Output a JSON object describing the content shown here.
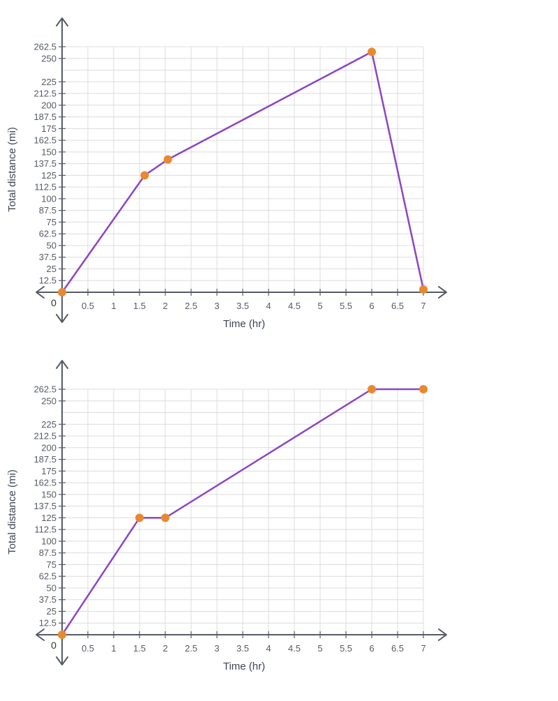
{
  "chart_data": [
    {
      "type": "line",
      "xlabel": "Time (hr)",
      "ylabel": "Total distance (mi)",
      "origin_label": "0",
      "x_ticks": [
        "0.5",
        "1",
        "1.5",
        "2",
        "2.5",
        "3",
        "3.5",
        "4",
        "4.5",
        "5",
        "5.5",
        "6",
        "6.5",
        "7"
      ],
      "y_ticks": [
        "12.5",
        "25",
        "37.5",
        "50",
        "62.5",
        "75",
        "87.5",
        "100",
        "112.5",
        "125",
        "137.5",
        "150",
        "162.5",
        "175",
        "187.5",
        "200",
        "212.5",
        "225",
        "250",
        "262.5"
      ],
      "xlim": [
        0,
        7
      ],
      "ylim": [
        0,
        262.5
      ],
      "grid": true,
      "series": [
        {
          "points": [
            [
              0,
              0
            ],
            [
              1.6,
              125
            ],
            [
              2.05,
              142
            ],
            [
              6,
              257
            ],
            [
              7,
              3
            ]
          ]
        }
      ],
      "colors": {
        "line": "#8b45c4",
        "marker": "#e8892f",
        "axis": "#555a66",
        "grid": "#dcdcdc"
      }
    },
    {
      "type": "line",
      "xlabel": "Time (hr)",
      "ylabel": "Total distance (mi)",
      "origin_label": "0",
      "x_ticks": [
        "0.5",
        "1",
        "1.5",
        "2",
        "2.5",
        "3",
        "3.5",
        "4",
        "4.5",
        "5",
        "5.5",
        "6",
        "6.5",
        "7"
      ],
      "y_ticks": [
        "12.5",
        "25",
        "37.5",
        "50",
        "62.5",
        "75",
        "87.5",
        "100",
        "112.5",
        "125",
        "137.5",
        "150",
        "162.5",
        "175",
        "187.5",
        "200",
        "212.5",
        "225",
        "250",
        "262.5"
      ],
      "xlim": [
        0,
        7
      ],
      "ylim": [
        0,
        262.5
      ],
      "grid": true,
      "series": [
        {
          "points": [
            [
              0,
              0
            ],
            [
              1.5,
              125
            ],
            [
              2,
              125
            ],
            [
              6,
              262.5
            ],
            [
              7,
              262.5
            ]
          ]
        }
      ],
      "colors": {
        "line": "#8b45c4",
        "marker": "#e8892f",
        "axis": "#555a66",
        "grid": "#dcdcdc"
      }
    }
  ]
}
